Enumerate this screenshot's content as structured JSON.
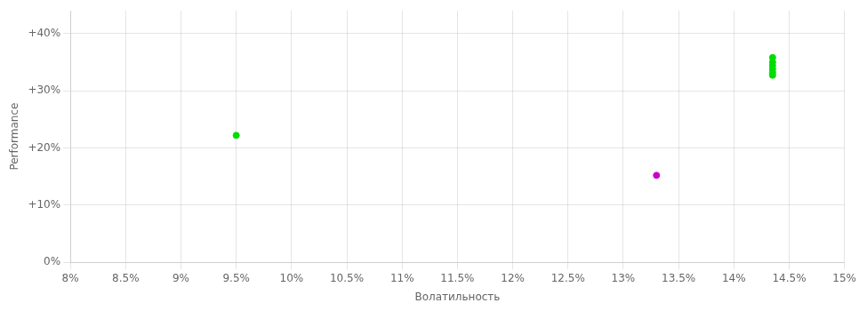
{
  "chart_data": {
    "type": "scatter",
    "xlabel": "Волатильность",
    "ylabel": "Performance",
    "xlim": [
      0.08,
      0.15
    ],
    "ylim": [
      0.0,
      0.44
    ],
    "xticks": [
      {
        "value": 0.08,
        "label": "8%"
      },
      {
        "value": 0.085,
        "label": "8.5%"
      },
      {
        "value": 0.09,
        "label": "9%"
      },
      {
        "value": 0.095,
        "label": "9.5%"
      },
      {
        "value": 0.1,
        "label": "10%"
      },
      {
        "value": 0.105,
        "label": "10.5%"
      },
      {
        "value": 0.11,
        "label": "11%"
      },
      {
        "value": 0.115,
        "label": "11.5%"
      },
      {
        "value": 0.12,
        "label": "12%"
      },
      {
        "value": 0.125,
        "label": "12.5%"
      },
      {
        "value": 0.13,
        "label": "13%"
      },
      {
        "value": 0.135,
        "label": "13.5%"
      },
      {
        "value": 0.14,
        "label": "14%"
      },
      {
        "value": 0.145,
        "label": "14.5%"
      },
      {
        "value": 0.15,
        "label": "15%"
      }
    ],
    "yticks": [
      {
        "value": 0.0,
        "label": "0%"
      },
      {
        "value": 0.1,
        "label": "+10%"
      },
      {
        "value": 0.2,
        "label": "+20%"
      },
      {
        "value": 0.3,
        "label": "+30%"
      },
      {
        "value": 0.4,
        "label": "+40%"
      }
    ],
    "grid": true,
    "series": [
      {
        "color": "#00dd00",
        "x": [
          0.1435,
          0.1435,
          0.1435,
          0.1435,
          0.1435,
          0.1435,
          0.095
        ],
        "values": [
          0.358,
          0.35,
          0.344,
          0.338,
          0.332,
          0.327,
          0.222
        ]
      },
      {
        "color": "#cc00cc",
        "x": [
          0.133
        ],
        "values": [
          0.152
        ]
      }
    ]
  }
}
